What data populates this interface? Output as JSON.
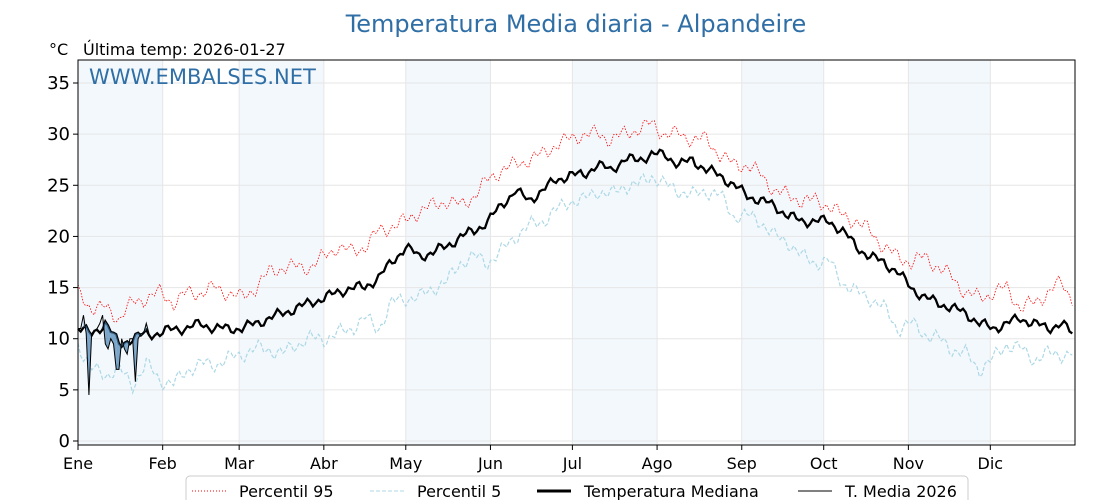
{
  "chart_data": {
    "type": "line",
    "title": "Temperatura Media diaria - Alpandeire",
    "unit_label": "°C",
    "subtitle": "Última temp: 2026-01-27",
    "watermark": "WWW.EMBALSES.NET",
    "ylim": [
      0,
      36
    ],
    "yticks": [
      0,
      5,
      10,
      15,
      20,
      25,
      30,
      35
    ],
    "xlim_days": [
      0,
      365
    ],
    "months": [
      "Ene",
      "Feb",
      "Mar",
      "Abr",
      "May",
      "Jun",
      "Jul",
      "Ago",
      "Sep",
      "Oct",
      "Nov",
      "Dic"
    ],
    "month_start_days": [
      0,
      31,
      59,
      90,
      120,
      151,
      181,
      212,
      243,
      273,
      304,
      334
    ],
    "grid": true,
    "legend_position": "bottom",
    "sample_days": [
      0,
      5,
      10,
      15,
      20,
      25,
      30,
      35,
      40,
      45,
      50,
      55,
      60,
      65,
      70,
      75,
      80,
      85,
      90,
      95,
      100,
      105,
      110,
      115,
      120,
      125,
      130,
      135,
      140,
      145,
      150,
      155,
      160,
      165,
      170,
      175,
      180,
      185,
      190,
      195,
      200,
      205,
      210,
      215,
      220,
      225,
      230,
      235,
      240,
      245,
      250,
      255,
      260,
      265,
      270,
      275,
      280,
      285,
      290,
      295,
      300,
      305,
      310,
      315,
      320,
      325,
      330,
      335,
      340,
      345,
      350,
      355,
      360,
      364
    ],
    "series": [
      {
        "name": "Percentil 95",
        "color": "#ff0000",
        "style": "dotted",
        "values": [
          14.5,
          13,
          13,
          12,
          13.5,
          14,
          14.5,
          13.5,
          14.5,
          14.5,
          15,
          14.5,
          14,
          15,
          16.5,
          17,
          17,
          17,
          18,
          19,
          18.5,
          19,
          20.5,
          21,
          21.5,
          22.5,
          23,
          23.5,
          23,
          24,
          25.5,
          26.5,
          27,
          27.5,
          28,
          29,
          29.5,
          30,
          30,
          29.5,
          30,
          30.5,
          31,
          30,
          30,
          29.5,
          29.5,
          28,
          27,
          27,
          26,
          24.5,
          24,
          23.5,
          23.5,
          23,
          22,
          21.5,
          20.5,
          19,
          18,
          17.5,
          18,
          17,
          16,
          14.5,
          14,
          14.5,
          15,
          13,
          13.5,
          14.5,
          15.5,
          14
        ]
      },
      {
        "name": "Percentil 5",
        "color": "#add8e6",
        "style": "dashed",
        "values": [
          9.5,
          7,
          6.5,
          7,
          5.5,
          7.5,
          6,
          5.5,
          7,
          7.5,
          7.5,
          8,
          8.5,
          9,
          9,
          8.5,
          9.5,
          10,
          10,
          10.5,
          11,
          12,
          11,
          13.5,
          14,
          14,
          15,
          15.5,
          17.5,
          18,
          17.5,
          18.5,
          20,
          21,
          21.5,
          22.5,
          23.5,
          23.5,
          24.5,
          24,
          25,
          25,
          26,
          25,
          24.5,
          24,
          24.5,
          24,
          22,
          22,
          21.5,
          20,
          19.5,
          18,
          17.5,
          17.5,
          15.5,
          14.5,
          14,
          13,
          11,
          11.5,
          10.5,
          10,
          9,
          8.5,
          7,
          8,
          9.5,
          9,
          8,
          8.5,
          8.5,
          8.5
        ]
      },
      {
        "name": "Temperatura Mediana",
        "color": "#000000",
        "style": "solid-thick",
        "values": [
          11,
          10.5,
          11.5,
          9.5,
          10,
          10.5,
          10.5,
          11,
          11,
          11.5,
          11,
          11,
          11,
          11.5,
          12,
          12.5,
          13,
          13.5,
          14,
          14.5,
          15,
          15,
          16,
          17.5,
          19,
          18,
          18.5,
          19,
          20,
          20.5,
          21.5,
          23,
          24.5,
          23.5,
          24.5,
          25.5,
          26,
          26,
          27,
          26.5,
          27.5,
          27.5,
          28,
          28,
          27,
          27.5,
          26.5,
          26,
          25,
          24,
          23.5,
          23,
          22,
          21.5,
          21.5,
          21.5,
          20.5,
          19,
          18,
          17.5,
          16.5,
          15,
          14,
          13.5,
          13,
          12.5,
          11.5,
          11,
          11.5,
          12,
          11.5,
          11,
          11.5,
          10.5
        ]
      }
    ],
    "current_year": {
      "name": "T. Media 2026",
      "color": "#000000",
      "fill_color": "#4682b4",
      "values": [
        11,
        11,
        12.3,
        10.5,
        4.5,
        10.5,
        10.8,
        11,
        11.5,
        12.3,
        9.5,
        9,
        10,
        9.5,
        7,
        7,
        10,
        9,
        8.5,
        10,
        10,
        5.8,
        10,
        10.5,
        10.5,
        11.5,
        10.5
      ]
    }
  }
}
